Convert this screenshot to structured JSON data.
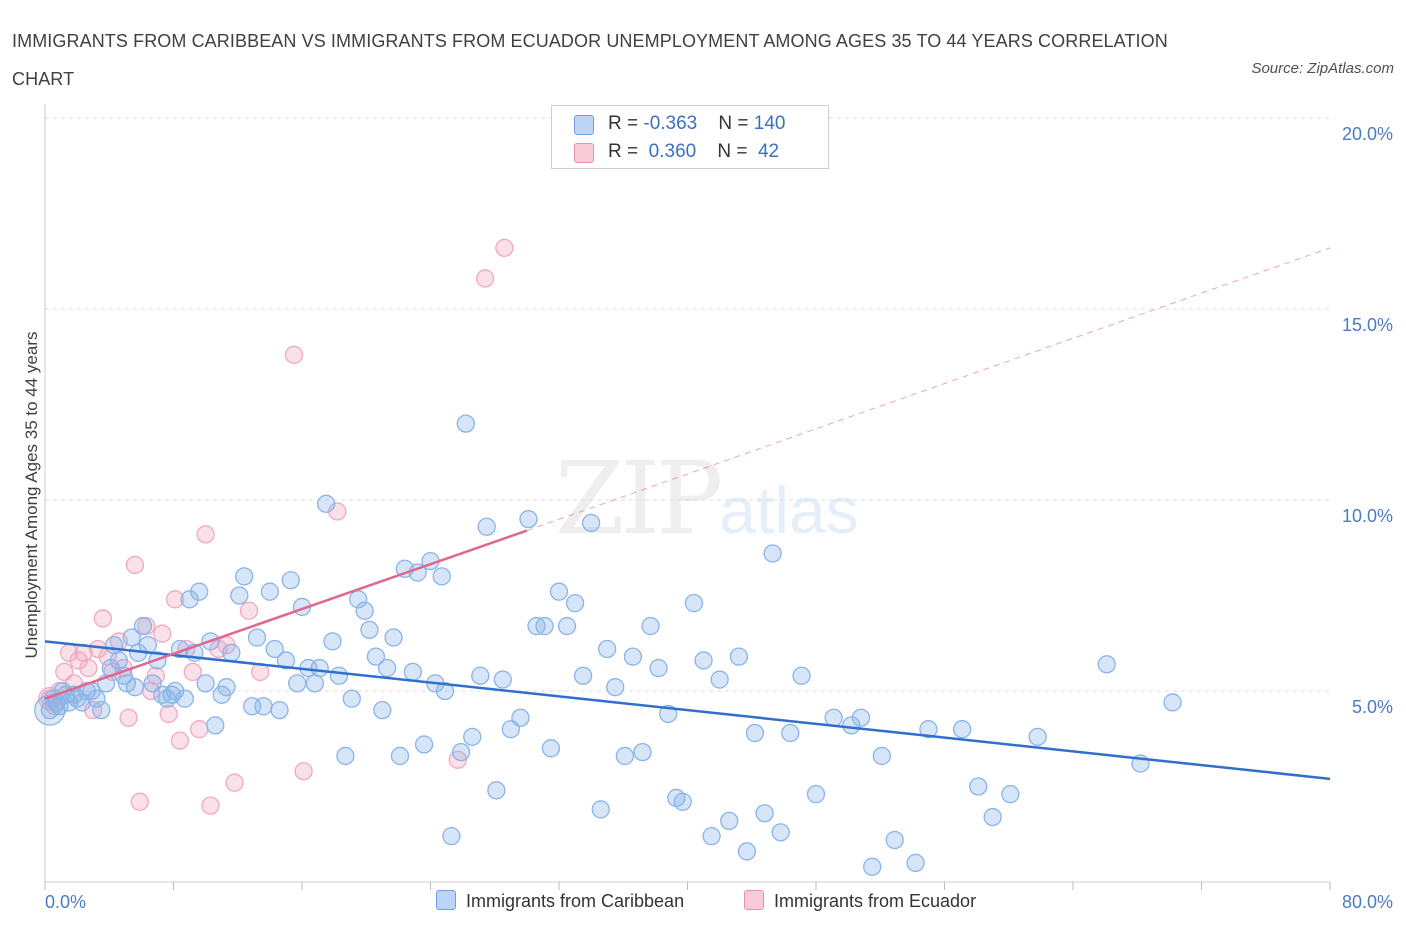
{
  "title": "IMMIGRANTS FROM CARIBBEAN VS IMMIGRANTS FROM ECUADOR UNEMPLOYMENT AMONG AGES 35 TO 44 YEARS CORRELATION CHART",
  "source": "Source: ZipAtlas.com",
  "watermark": {
    "zip": "ZIP",
    "atlas": "atlas"
  },
  "legend": {
    "rows": [
      {
        "r_label": "R = ",
        "r_value": "-0.363",
        "n_label": "N = ",
        "n_value": "140"
      },
      {
        "r_label": "R = ",
        "r_value": " 0.360",
        "n_label": "N = ",
        "n_value": " 42"
      }
    ]
  },
  "colors": {
    "caribbean": "#8ab4e8",
    "caribbean_line": "#2f6fce",
    "ecuador": "#f2a7c0",
    "ecuador_line": "#e0668f"
  },
  "chart_data": {
    "type": "scatter",
    "title": "IMMIGRANTS FROM CARIBBEAN VS IMMIGRANTS FROM ECUADOR UNEMPLOYMENT AMONG AGES 35 TO 44 YEARS CORRELATION CHART",
    "xlabel": "",
    "ylabel": "Unemployment Among Ages 35 to 44 years",
    "xlim": [
      0,
      80
    ],
    "ylim": [
      0,
      20
    ],
    "x_tick_labels": [
      "0.0%",
      "80.0%"
    ],
    "y_ticks": [
      5,
      10,
      15,
      20
    ],
    "y_tick_labels": [
      "5.0%",
      "10.0%",
      "15.0%",
      "20.0%"
    ],
    "grid": true,
    "legend_position": "top-center",
    "series": [
      {
        "name": "Immigrants from Caribbean",
        "R": -0.363,
        "N": 140,
        "trend": {
          "x": [
            0,
            80
          ],
          "y": [
            6.3,
            2.7
          ]
        },
        "points": [
          [
            0.3,
            4.5
          ],
          [
            0.5,
            4.8
          ],
          [
            0.7,
            4.7
          ],
          [
            0.9,
            4.6
          ],
          [
            1.1,
            5.0
          ],
          [
            1.3,
            4.9
          ],
          [
            1.5,
            4.7
          ],
          [
            1.8,
            4.9
          ],
          [
            2.0,
            4.8
          ],
          [
            2.3,
            4.7
          ],
          [
            2.6,
            5.0
          ],
          [
            2.9,
            5.0
          ],
          [
            3.2,
            4.8
          ],
          [
            3.5,
            4.5
          ],
          [
            3.8,
            5.2
          ],
          [
            4.1,
            5.6
          ],
          [
            4.3,
            6.2
          ],
          [
            4.6,
            5.8
          ],
          [
            4.9,
            5.4
          ],
          [
            5.1,
            5.2
          ],
          [
            5.4,
            6.4
          ],
          [
            5.6,
            5.1
          ],
          [
            5.8,
            6.0
          ],
          [
            6.1,
            6.7
          ],
          [
            6.4,
            6.2
          ],
          [
            6.7,
            5.2
          ],
          [
            7.0,
            5.8
          ],
          [
            7.3,
            4.9
          ],
          [
            7.6,
            4.8
          ],
          [
            7.9,
            4.9
          ],
          [
            8.1,
            5.0
          ],
          [
            8.4,
            6.1
          ],
          [
            8.7,
            4.8
          ],
          [
            9.0,
            7.4
          ],
          [
            9.3,
            6.0
          ],
          [
            9.6,
            7.6
          ],
          [
            10.0,
            5.2
          ],
          [
            10.3,
            6.3
          ],
          [
            10.6,
            4.1
          ],
          [
            11.0,
            4.9
          ],
          [
            11.3,
            5.1
          ],
          [
            11.6,
            6.0
          ],
          [
            12.1,
            7.5
          ],
          [
            12.4,
            8.0
          ],
          [
            12.9,
            4.6
          ],
          [
            13.2,
            6.4
          ],
          [
            13.6,
            4.6
          ],
          [
            14.0,
            7.6
          ],
          [
            14.3,
            6.1
          ],
          [
            14.6,
            4.5
          ],
          [
            15.0,
            5.8
          ],
          [
            15.3,
            7.9
          ],
          [
            15.7,
            5.2
          ],
          [
            16.0,
            7.2
          ],
          [
            16.4,
            5.6
          ],
          [
            16.8,
            5.2
          ],
          [
            17.1,
            5.6
          ],
          [
            17.5,
            9.9
          ],
          [
            17.9,
            6.3
          ],
          [
            18.3,
            5.4
          ],
          [
            18.7,
            3.3
          ],
          [
            19.1,
            4.8
          ],
          [
            19.5,
            7.4
          ],
          [
            19.9,
            7.1
          ],
          [
            20.2,
            6.6
          ],
          [
            20.6,
            5.9
          ],
          [
            21.0,
            4.5
          ],
          [
            21.3,
            5.6
          ],
          [
            21.7,
            6.4
          ],
          [
            22.1,
            3.3
          ],
          [
            22.4,
            8.2
          ],
          [
            22.9,
            5.5
          ],
          [
            23.2,
            8.1
          ],
          [
            23.6,
            3.6
          ],
          [
            24.0,
            8.4
          ],
          [
            24.3,
            5.2
          ],
          [
            24.7,
            8.0
          ],
          [
            24.9,
            5.0
          ],
          [
            25.3,
            1.2
          ],
          [
            25.9,
            3.4
          ],
          [
            26.2,
            12.0
          ],
          [
            26.6,
            3.8
          ],
          [
            27.1,
            5.4
          ],
          [
            27.5,
            9.3
          ],
          [
            28.1,
            2.4
          ],
          [
            28.5,
            5.3
          ],
          [
            29.0,
            4.0
          ],
          [
            29.6,
            4.3
          ],
          [
            30.1,
            9.5
          ],
          [
            30.6,
            6.7
          ],
          [
            31.1,
            6.7
          ],
          [
            31.5,
            3.5
          ],
          [
            32.0,
            7.6
          ],
          [
            32.5,
            6.7
          ],
          [
            33.0,
            7.3
          ],
          [
            33.5,
            5.4
          ],
          [
            34.0,
            9.4
          ],
          [
            34.6,
            1.9
          ],
          [
            35.0,
            6.1
          ],
          [
            35.5,
            5.1
          ],
          [
            36.1,
            3.3
          ],
          [
            36.6,
            5.9
          ],
          [
            37.2,
            3.4
          ],
          [
            37.7,
            6.7
          ],
          [
            38.2,
            5.6
          ],
          [
            38.8,
            4.4
          ],
          [
            39.3,
            2.2
          ],
          [
            39.7,
            2.1
          ],
          [
            40.4,
            7.3
          ],
          [
            41.0,
            5.8
          ],
          [
            41.5,
            1.2
          ],
          [
            42.0,
            5.3
          ],
          [
            42.6,
            1.6
          ],
          [
            43.2,
            5.9
          ],
          [
            43.7,
            0.8
          ],
          [
            44.2,
            3.9
          ],
          [
            44.8,
            1.8
          ],
          [
            45.3,
            8.6
          ],
          [
            45.8,
            1.3
          ],
          [
            46.4,
            3.9
          ],
          [
            47.1,
            5.4
          ],
          [
            48.0,
            2.3
          ],
          [
            49.1,
            4.3
          ],
          [
            50.2,
            4.1
          ],
          [
            50.8,
            4.3
          ],
          [
            51.5,
            0.4
          ],
          [
            52.1,
            3.3
          ],
          [
            52.9,
            1.1
          ],
          [
            54.2,
            0.5
          ],
          [
            55.0,
            4.0
          ],
          [
            57.1,
            4.0
          ],
          [
            58.1,
            2.5
          ],
          [
            59.0,
            1.7
          ],
          [
            60.1,
            2.3
          ],
          [
            61.8,
            3.8
          ],
          [
            66.1,
            5.7
          ],
          [
            68.2,
            3.1
          ],
          [
            70.2,
            4.7
          ]
        ]
      },
      {
        "name": "Immigrants from Ecuador",
        "R": 0.36,
        "N": 42,
        "trend": {
          "x": [
            0,
            30
          ],
          "y": [
            4.8,
            9.2
          ]
        },
        "trend_dashed": {
          "x": [
            30,
            80
          ],
          "y": [
            9.2,
            16.6
          ]
        },
        "points": [
          [
            0.3,
            4.8
          ],
          [
            0.6,
            4.6
          ],
          [
            0.9,
            5.0
          ],
          [
            1.2,
            5.5
          ],
          [
            1.5,
            6.0
          ],
          [
            1.8,
            5.2
          ],
          [
            2.1,
            5.8
          ],
          [
            2.4,
            6.0
          ],
          [
            2.7,
            5.6
          ],
          [
            3.0,
            4.5
          ],
          [
            3.3,
            6.1
          ],
          [
            3.6,
            6.9
          ],
          [
            3.9,
            5.9
          ],
          [
            4.2,
            5.5
          ],
          [
            4.6,
            6.3
          ],
          [
            4.9,
            5.6
          ],
          [
            5.2,
            4.3
          ],
          [
            5.6,
            8.3
          ],
          [
            5.9,
            2.1
          ],
          [
            6.3,
            6.7
          ],
          [
            6.6,
            5.0
          ],
          [
            6.9,
            5.4
          ],
          [
            7.3,
            6.5
          ],
          [
            7.7,
            4.4
          ],
          [
            8.1,
            7.4
          ],
          [
            8.4,
            3.7
          ],
          [
            8.8,
            6.1
          ],
          [
            9.2,
            5.5
          ],
          [
            9.6,
            4.0
          ],
          [
            10.0,
            9.1
          ],
          [
            10.3,
            2.0
          ],
          [
            10.8,
            6.1
          ],
          [
            11.3,
            6.2
          ],
          [
            11.8,
            2.6
          ],
          [
            12.7,
            7.1
          ],
          [
            13.4,
            5.5
          ],
          [
            15.5,
            13.8
          ],
          [
            16.1,
            2.9
          ],
          [
            18.2,
            9.7
          ],
          [
            25.7,
            3.2
          ],
          [
            27.4,
            15.8
          ],
          [
            28.6,
            16.6
          ]
        ]
      }
    ]
  },
  "bottom_legend": {
    "caribbean": "Immigrants from Caribbean",
    "ecuador": "Immigrants from Ecuador"
  }
}
